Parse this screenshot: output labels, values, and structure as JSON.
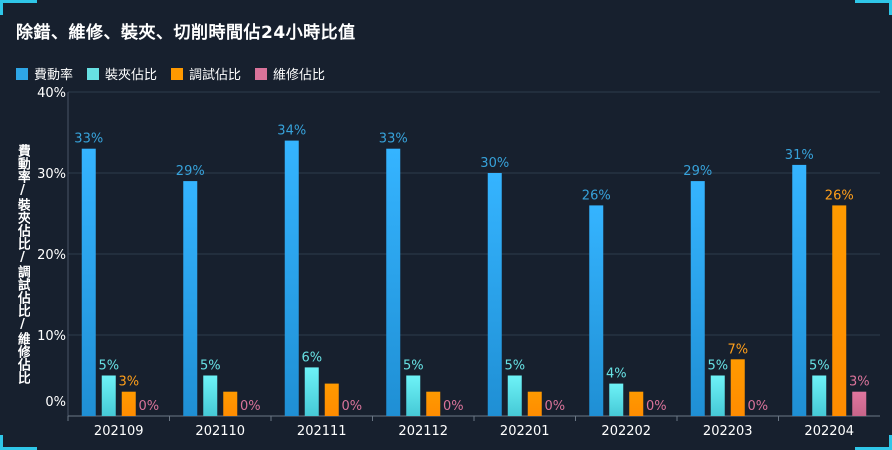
{
  "chart_data": {
    "type": "bar",
    "title": "除錯、維修、裝夾、切削時間佔24小時比值",
    "ylabel": "費動率/裝夾佔比/調試佔比/維修佔比",
    "xlabel": "",
    "ylim": [
      0,
      40
    ],
    "y_ticks": [
      "0%",
      "10%",
      "20%",
      "30%",
      "40%"
    ],
    "grid": true,
    "legend_position": "top-left",
    "categories": [
      "202109",
      "202110",
      "202111",
      "202112",
      "202201",
      "202202",
      "202203",
      "202204"
    ],
    "series": [
      {
        "name": "費動率",
        "color": "#2ea6e6",
        "label_color": "#37a2da",
        "values": [
          33,
          29,
          34,
          33,
          30,
          26,
          29,
          31
        ],
        "labels": [
          "33%",
          "29%",
          "34%",
          "33%",
          "30%",
          "26%",
          "29%",
          "31%"
        ]
      },
      {
        "name": "裝夾佔比",
        "color": "#67e0e3",
        "label_color": "#67e0e3",
        "values": [
          5,
          5,
          6,
          5,
          5,
          4,
          5,
          5
        ],
        "labels": [
          "5%",
          "5%",
          "6%",
          "5%",
          "5%",
          "4%",
          "5%",
          "5%"
        ]
      },
      {
        "name": "調試佔比",
        "color": "#ff9900",
        "label_color": "#ff9f1a",
        "values": [
          3,
          3,
          4,
          3,
          3,
          3,
          7,
          26
        ],
        "labels": [
          "3%",
          "",
          "",
          "",
          "",
          "",
          "7%",
          "26%"
        ]
      },
      {
        "name": "維修佔比",
        "color": "#d9739a",
        "label_color": "#d9739a",
        "values": [
          0,
          0,
          0,
          0,
          0,
          0,
          0,
          3
        ],
        "labels": [
          "0%",
          "0%",
          "0%",
          "0%",
          "0%",
          "0%",
          "0%",
          "3%"
        ]
      }
    ]
  }
}
